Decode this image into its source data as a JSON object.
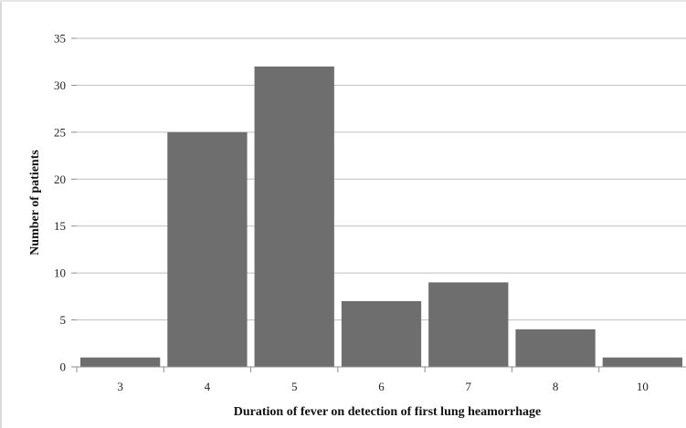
{
  "chart_data": {
    "type": "bar",
    "title": "",
    "xlabel": "Duration of fever on detection of first lung heamorrhage",
    "ylabel": "Number of patients",
    "categories": [
      "3",
      "4",
      "5",
      "6",
      "7",
      "8",
      "10"
    ],
    "values": [
      1,
      25,
      32,
      7,
      9,
      4,
      1
    ],
    "ylim": [
      0,
      35
    ],
    "yticks": [
      "0",
      "5",
      "10",
      "15",
      "20",
      "25",
      "30",
      "35"
    ],
    "grid": true,
    "legend": "none",
    "colors": {
      "bar": "#6e6e6e",
      "grid": "#bfbfbf",
      "axis": "#8c8c8c"
    }
  }
}
